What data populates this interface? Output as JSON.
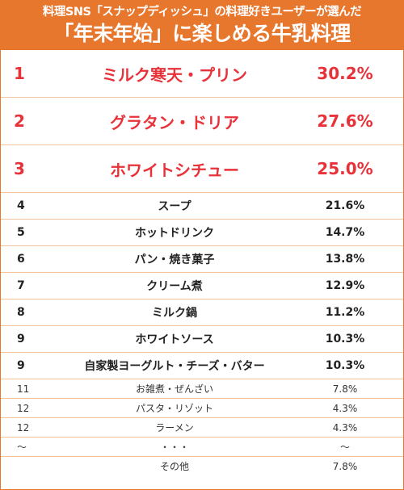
{
  "header": {
    "subtitle": "料理SNS「スナップディッシュ」の料理好きユーザーが選んだ",
    "title": "「年末年始」に楽しめる牛乳料理"
  },
  "chart_data": {
    "type": "table",
    "columns": [
      "rank",
      "item",
      "value"
    ],
    "rows": [
      {
        "rank": "1",
        "item": "ミルク寒天・プリン",
        "value": "30.2%",
        "tier": "top"
      },
      {
        "rank": "2",
        "item": "グラタン・ドリア",
        "value": "27.6%",
        "tier": "top"
      },
      {
        "rank": "3",
        "item": "ホワイトシチュー",
        "value": "25.0%",
        "tier": "top"
      },
      {
        "rank": "4",
        "item": "スープ",
        "value": "21.6%",
        "tier": "mid"
      },
      {
        "rank": "5",
        "item": "ホットドリンク",
        "value": "14.7%",
        "tier": "mid"
      },
      {
        "rank": "6",
        "item": "パン・焼き菓子",
        "value": "13.8%",
        "tier": "mid"
      },
      {
        "rank": "7",
        "item": "クリーム煮",
        "value": "12.9%",
        "tier": "mid"
      },
      {
        "rank": "8",
        "item": "ミルク鍋",
        "value": "11.2%",
        "tier": "mid"
      },
      {
        "rank": "9",
        "item": "ホワイトソース",
        "value": "10.3%",
        "tier": "mid"
      },
      {
        "rank": "9",
        "item": "自家製ヨーグルト・チーズ・バター",
        "value": "10.3%",
        "tier": "mid"
      },
      {
        "rank": "11",
        "item": "お雑煮・ぜんざい",
        "value": "7.8%",
        "tier": "low"
      },
      {
        "rank": "12",
        "item": "パスタ・リゾット",
        "value": "4.3%",
        "tier": "low"
      },
      {
        "rank": "12",
        "item": "ラーメン",
        "value": "4.3%",
        "tier": "low"
      },
      {
        "rank": "～",
        "item": "・・・",
        "value": "～",
        "tier": "low"
      },
      {
        "rank": "",
        "item": "その他",
        "value": "7.8%",
        "tier": "low"
      }
    ]
  },
  "colors": {
    "header_bg": "#e8772e",
    "top_text": "#e8323a",
    "row_border": "#f2c49e"
  }
}
